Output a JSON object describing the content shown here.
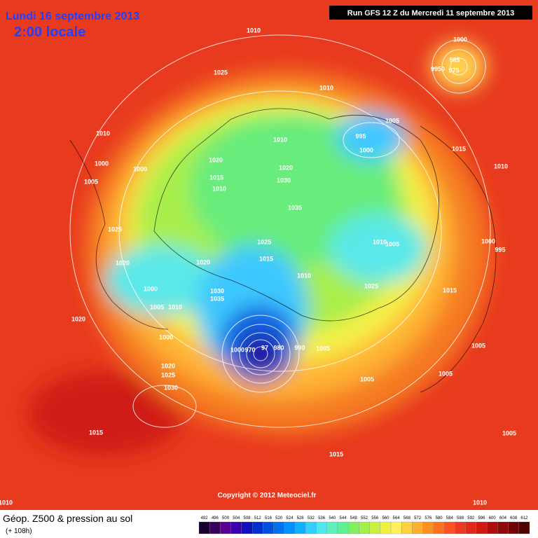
{
  "header": {
    "date": "Lundi 16 septembre 2013",
    "time": "2:00 locale",
    "run": "Run GFS 12 Z du Mercredi 11 septembre 2013"
  },
  "isobar_labels": [
    "1010",
    "1000",
    "985",
    "9950",
    "975",
    "1025",
    "1010",
    "1010",
    "1005",
    "995",
    "1000",
    "1010",
    "1015",
    "1010",
    "1000",
    "1000",
    "1020",
    "1020",
    "1030",
    "1005",
    "1015",
    "1010",
    "1035",
    "1025",
    "1025",
    "1010",
    "1005",
    "1000",
    "995",
    "1020",
    "1020",
    "1015",
    "1010",
    "1025",
    "1015",
    "1000",
    "1030",
    "1035",
    "1005",
    "1010",
    "1020",
    "1000",
    "1000",
    "970",
    "97",
    "980",
    "990",
    "1005",
    "1005",
    "1020",
    "1025",
    "1005",
    "1005",
    "1030",
    "1015",
    "1015",
    "1005",
    "1010",
    "1010"
  ],
  "footer": {
    "title": "Géop. Z500 & pression au sol",
    "lead_time": "(+ 108h)",
    "copyright": "Copyright © 2012 Meteociel.fr"
  },
  "scale": {
    "labels": [
      492,
      496,
      500,
      504,
      508,
      512,
      516,
      520,
      524,
      528,
      532,
      536,
      540,
      544,
      548,
      552,
      556,
      560,
      564,
      568,
      572,
      576,
      580,
      584,
      588,
      592,
      596,
      600,
      604,
      608,
      612
    ],
    "colors": [
      "#1a0030",
      "#3a0060",
      "#5a0090",
      "#3a00b0",
      "#1010c0",
      "#0030d0",
      "#0050e0",
      "#0070f0",
      "#0090ff",
      "#10b0ff",
      "#30d0ff",
      "#50e8f0",
      "#60f0c0",
      "#60f090",
      "#80f060",
      "#a0f050",
      "#c8f040",
      "#f0f040",
      "#fff060",
      "#ffd040",
      "#ffb030",
      "#ff9020",
      "#ff7020",
      "#ff5020",
      "#f03820",
      "#e02818",
      "#d01810",
      "#b00c08",
      "#900808",
      "#700404",
      "#500000"
    ]
  }
}
